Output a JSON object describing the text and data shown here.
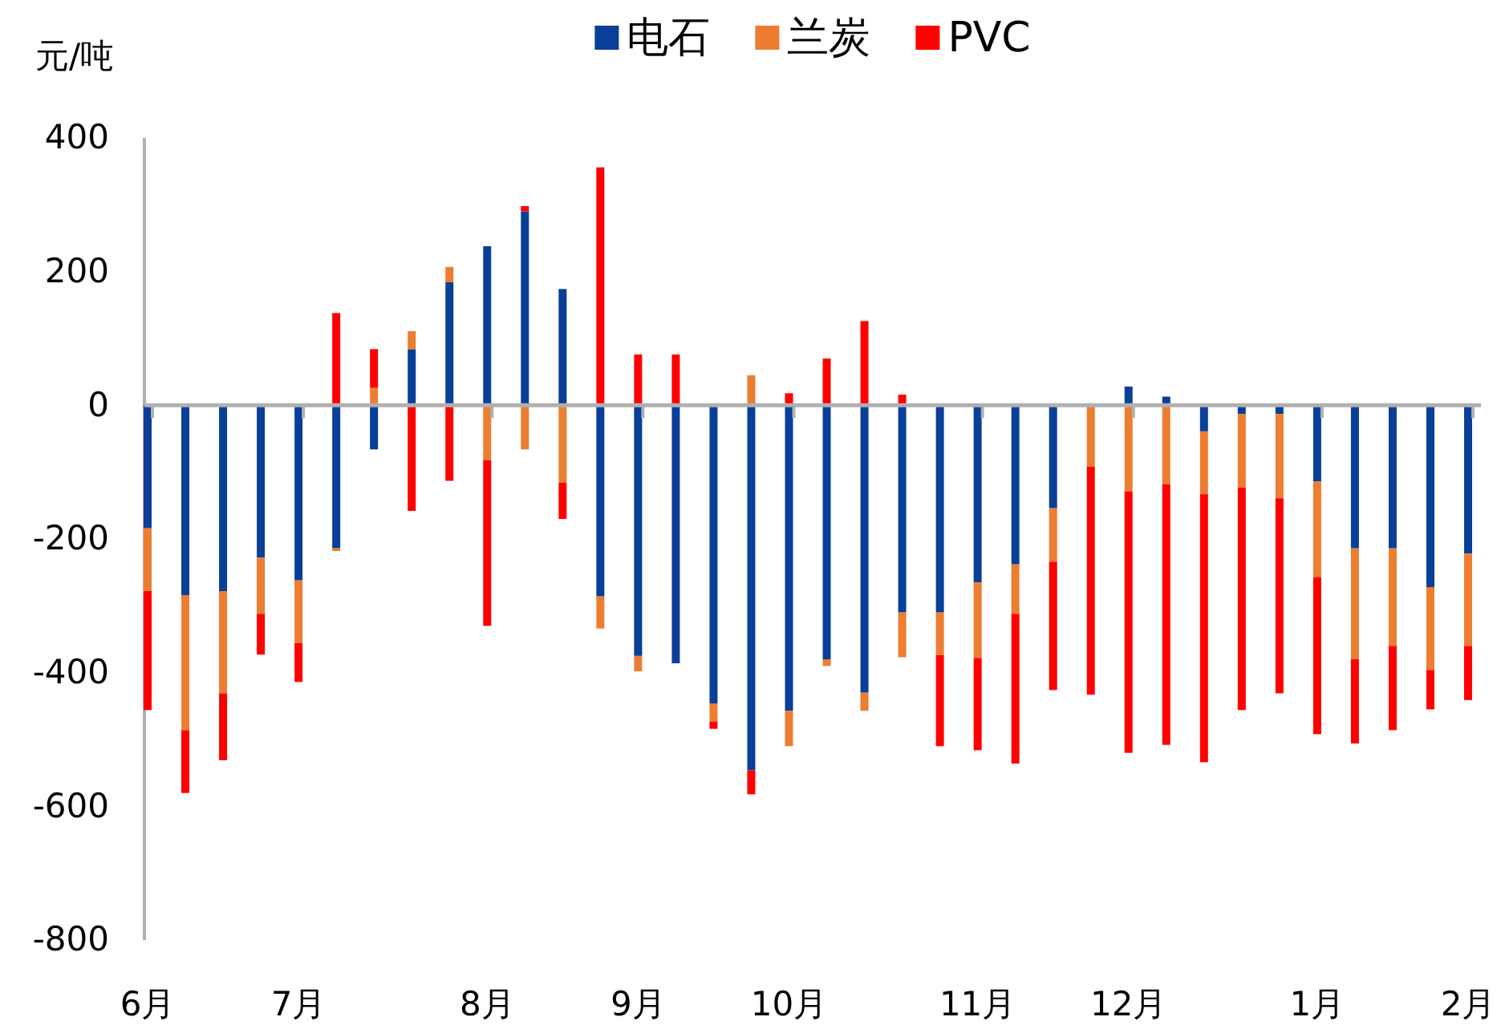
{
  "chart_data": {
    "type": "bar",
    "stacked": true,
    "ylabel": "元/吨",
    "legend": "top",
    "categories": [
      "6月",
      null,
      null,
      null,
      "7月",
      null,
      null,
      null,
      null,
      "8月",
      null,
      null,
      null,
      "9月",
      null,
      null,
      null,
      "10月",
      null,
      null,
      null,
      null,
      "11月",
      null,
      null,
      null,
      "12月",
      null,
      null,
      null,
      null,
      "1月",
      null,
      null,
      null,
      "2月"
    ],
    "ylim": [
      -800,
      400
    ],
    "yticks": [
      -800,
      -600,
      -400,
      -200,
      0,
      200,
      400
    ],
    "series": [
      {
        "name": "电石",
        "color": "#0a3f99",
        "values": [
          -184,
          -284,
          -278,
          -228,
          -262,
          -214,
          -66,
          84,
          184,
          238,
          290,
          174,
          -286,
          -375,
          -386,
          -446,
          -546,
          -457,
          -380,
          -430,
          -310,
          -310,
          -265,
          -238,
          -154,
          0,
          28,
          13,
          -39,
          -13,
          -13,
          -114,
          -214,
          -214,
          -272,
          -222
        ]
      },
      {
        "name": "兰炭",
        "color": "#ed7d31",
        "values": [
          -94,
          -202,
          -153,
          -84,
          -94,
          -4,
          26,
          27,
          23,
          -82,
          -66,
          -116,
          -48,
          -23,
          0,
          -27,
          45,
          -53,
          -10,
          -27,
          -67,
          -64,
          -113,
          -74,
          -80,
          -92,
          -129,
          -118,
          -94,
          -110,
          -126,
          -143,
          -166,
          -146,
          -124,
          -138
        ]
      },
      {
        "name": "PVC",
        "color": "#ff0000",
        "values": [
          -178,
          -94,
          -100,
          -61,
          -58,
          138,
          58,
          -158,
          -113,
          -248,
          8,
          -54,
          356,
          76,
          76,
          -11,
          -36,
          18,
          70,
          126,
          16,
          -136,
          -138,
          -224,
          -192,
          -341,
          -391,
          -390,
          -401,
          -333,
          -292,
          -235,
          -126,
          -126,
          -59,
          -81
        ]
      }
    ]
  }
}
